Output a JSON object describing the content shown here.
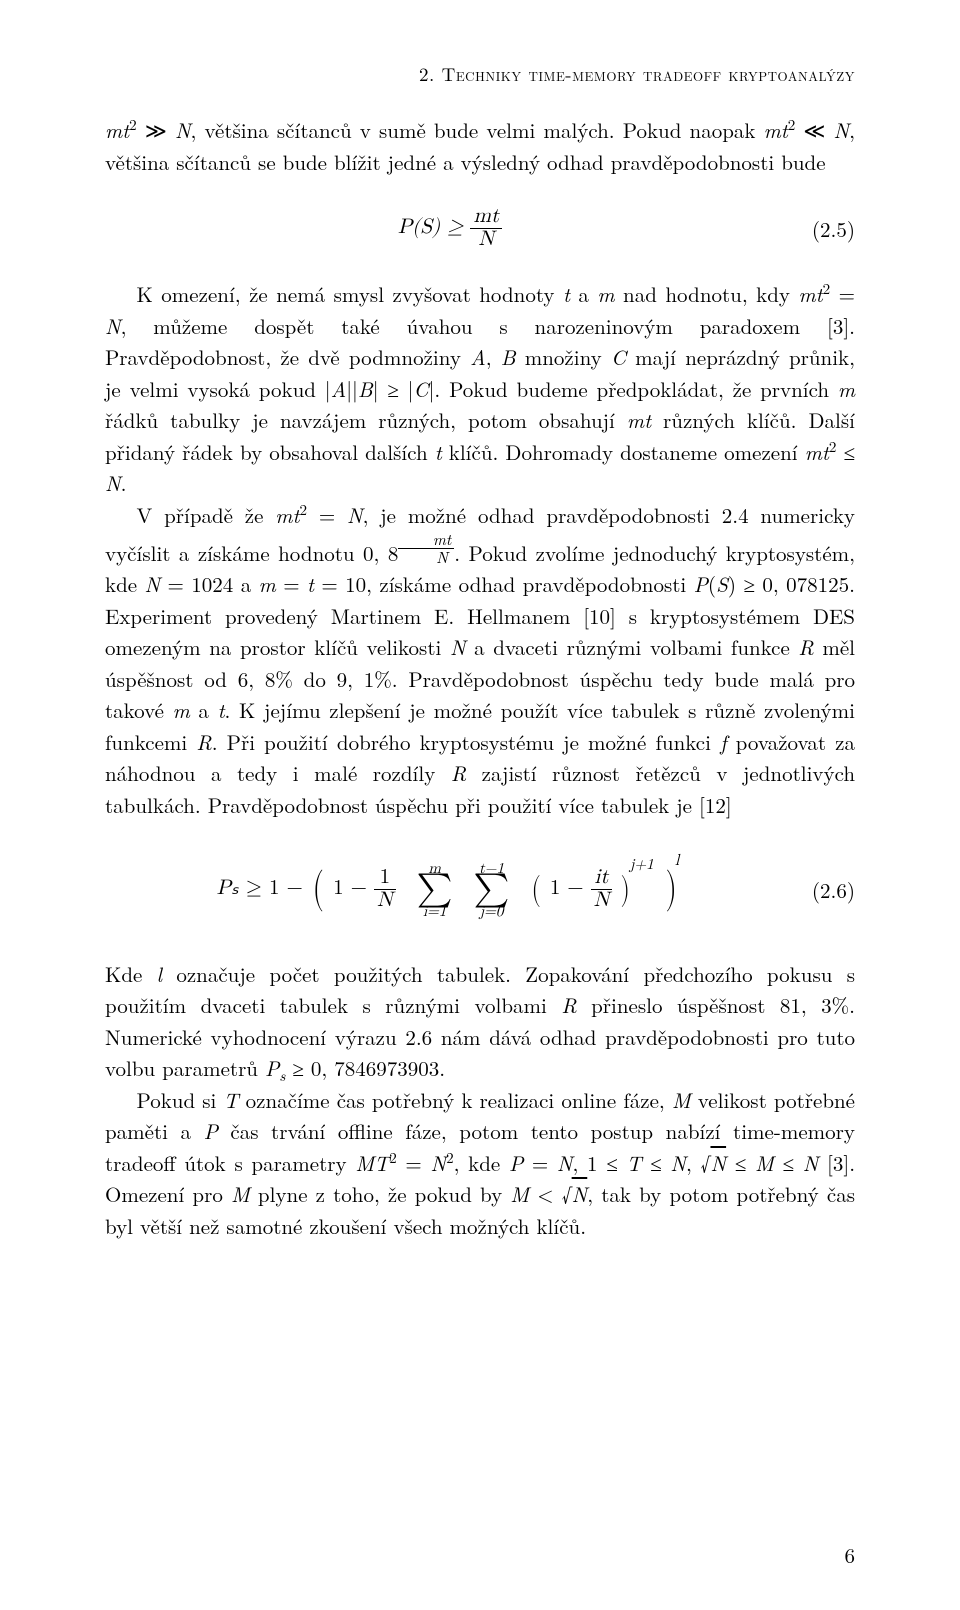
{
  "running_head": "2. Techniky time-memory tradeoff kryptoanalýzy",
  "page_number": "6",
  "para1": "mt² ≫ N, většina sčítanců v sumě bude velmi malých. Pokud naopak mt² ≪ N, většina sčítanců se bude blížit jedné a výsledný odhad pravděpodobnosti bude",
  "eq25": {
    "lhs": "P(S) ≥ ",
    "frac_num": "mt",
    "frac_den": "N",
    "num": "(2.5)"
  },
  "para2a": "K omezení, že nemá smysl zvyšovat hodnoty ",
  "para2b": " a ",
  "para2c": " nad hodnotu, kdy ",
  "para2d": ", můžeme dospět také úvahou s narozeninovým paradoxem [3]. Pravděpodobnost, že dvě podmnožiny ",
  "para2e": " množiny ",
  "para2f": " mají neprázdný průnik, je velmi vysoká pokud ",
  "para2g": ". Pokud budeme předpokládat, že prvních ",
  "para2h": " řádků tabulky je navzájem různých, potom obsahují ",
  "para2i": " různých klíčů. Další přidaný řádek by obsahoval dalších ",
  "para2j": " klíčů. Dohromady dostaneme omezení ",
  "para2k": ".",
  "para3a": "V případě že ",
  "para3b": ", je možné odhad pravděpodobnosti 2.4 numericky vyčíslit a získáme hodnotu ",
  "para3c": ". Pokud zvolíme jednoduchý kryptosystém, kde ",
  "para3d": " a ",
  "para3e": ", získáme odhad pravděpodobnosti ",
  "para3f": ". Experiment provedený Martinem E. Hellmanem [10] s kryptosystémem DES omezeným na prostor klíčů velikosti ",
  "para3g": " a dvaceti různými volbami funkce ",
  "para3h": " měl úspěšnost od ",
  "para3i": " do ",
  "para3j": ". Pravděpodobnost úspěchu tedy bude malá pro takové ",
  "para3k": " a ",
  "para3l": ". K jejímu zlepšení je možné použít více tabulek s různě zvolenými funkcemi ",
  "para3m": ". Při použití dobrého kryptosystému je možné funkci ",
  "para3n": " považovat za náhodnou a tedy i malé rozdíly ",
  "para3o": " zajistí různost řetězců v jednotlivých tabulkách. Pravděpodobnost úspěchu při použití více tabulek je [12]",
  "eq26": {
    "num": "(2.6)"
  },
  "para4a": "Kde ",
  "para4b": " označuje počet použitých tabulek. Zopakování předchozího pokusu s použitím dvaceti tabulek s různými volbami ",
  "para4c": " přineslo úspěšnost ",
  "para4d": ". Numerické vyhodnocení výrazu 2.6 nám dává odhad pravděpodobnosti pro tuto volbu parametrů ",
  "para4e": ".",
  "para5a": "Pokud si ",
  "para5b": " označíme čas potřebný k realizaci online fáze, ",
  "para5c": " velikost potřebné paměti a ",
  "para5d": " čas trvání offline fáze, potom tento postup nabízí time-memory tradeoff útok s parametry ",
  "para5e": ", kde ",
  "para5f": ", ",
  "para5g": ", ",
  "para5h": " [3]. Omezení pro ",
  "para5i": " plyne z toho, že pokud by ",
  "para5j": ", tak by potom potřebný čas byl větší než samotné zkoušení všech možných klíčů.",
  "math": {
    "t": "t",
    "m": "m",
    "mt2eqN": "mt² = N",
    "A": "A",
    "B": "B",
    "C": "C",
    "ABgeC": "|A||B| ≥ |C|",
    "mt": "mt",
    "mt2leN": "mt² ≤ N",
    "N1024": "N = 1024",
    "mt10": "m = t = 10",
    "PS": "P(S) ≥ 0, 078125",
    "N": "N",
    "R": "R",
    "f": "f",
    "l": "l",
    "pct68": "6, 8%",
    "pct91": "9, 1%",
    "pct813": "81, 3%",
    "zeroeight": "0, 8",
    "Ps": "Pₛ ≥ 0, 7846973903",
    "T": "T",
    "M": "M",
    "P": "P",
    "MT2N2": "MT² = N²",
    "PeqN": "P = N",
    "TleN": "1 ≤ T ≤ N",
    "sqrtNM": "√N ≤ M ≤ N",
    "MltN": "M < √N",
    "Psym": "Pₛ",
    "one": "1",
    "minus": "−",
    "ge": "≥",
    "sum1_top": "m",
    "sum1_bot": "i=1",
    "sum2_top": "t−1",
    "sum2_bot": "j=0",
    "it": "it",
    "jplus1": "j+1",
    "fracN": "N",
    "frac_mt": "mt"
  }
}
